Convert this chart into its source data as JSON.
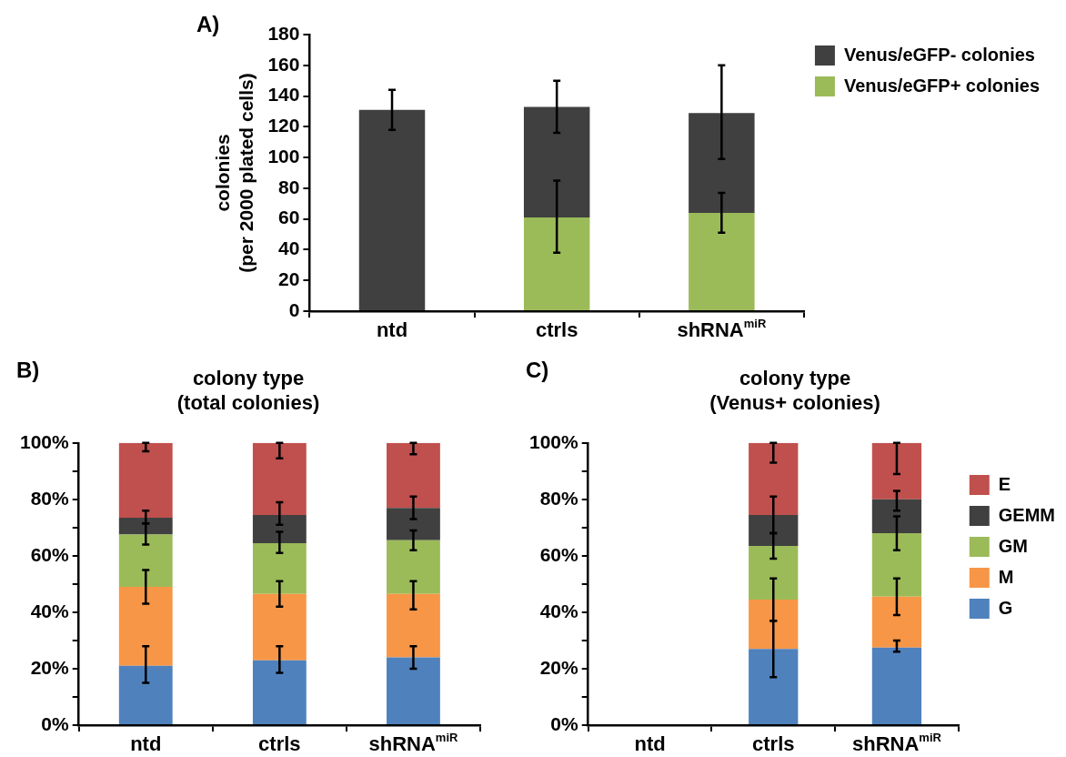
{
  "chart_data": [
    {
      "type": "bar",
      "stacked": true,
      "annotations": [
        "A)"
      ],
      "ylabel": "colonies\n(per 2000 plated cells)",
      "categories": [
        "ntd",
        "ctrls",
        "shRNA$^{miR}$"
      ],
      "series": [
        {
          "name": "Venus/eGFP+ colonies",
          "color": "#9bbb59",
          "values": [
            null,
            61,
            64
          ],
          "errors": [
            null,
            [
              38,
              85
            ],
            [
              51,
              77
            ]
          ]
        },
        {
          "name": "Venus/eGFP- colonies",
          "color": "#404040",
          "values": [
            131,
            72,
            65
          ],
          "errors": [
            [
              118,
              144
            ],
            [
              116,
              150
            ],
            [
              99,
              160
            ]
          ]
        }
      ],
      "ylim": [
        0,
        180
      ],
      "yticks": [
        0,
        20,
        40,
        60,
        80,
        100,
        120,
        140,
        160,
        180
      ],
      "legend": "top right",
      "grid": false
    },
    {
      "type": "bar",
      "stacked": true,
      "annotations": [
        "B)"
      ],
      "title": "colony type\n(total colonies)",
      "categories": [
        "ntd",
        "ctrls",
        "shRNA$^{miR}$"
      ],
      "series": [
        {
          "color": "#4f81bd",
          "values": [
            21,
            23,
            24
          ],
          "errors": [
            [
              15,
              28
            ],
            [
              18.5,
              28
            ],
            [
              20,
              28
            ]
          ]
        },
        {
          "color": "#f79646",
          "values": [
            28,
            23.5,
            22.5
          ],
          "errors": [
            [
              43,
              55
            ],
            [
              42,
              51
            ],
            [
              41,
              51
            ]
          ]
        },
        {
          "color": "#9bbb59",
          "values": [
            18.5,
            18,
            19
          ],
          "errors": [
            [
              64,
              71.5
            ],
            [
              61,
              68.5
            ],
            [
              62,
              69
            ]
          ]
        },
        {
          "color": "#404040",
          "values": [
            6,
            10,
            11.5
          ],
          "errors": [
            [
              71.5,
              76
            ],
            [
              71,
              79
            ],
            [
              73,
              81
            ]
          ]
        },
        {
          "color": "#c0504d",
          "values": [
            26.5,
            25.5,
            23
          ],
          "errors": [
            [
              97,
              100
            ],
            [
              94.5,
              100
            ],
            [
              96,
              100
            ]
          ]
        }
      ],
      "ylim": [
        0,
        100
      ],
      "yticks": [
        {
          "value": 0,
          "label": "0%"
        },
        {
          "value": 10,
          "label": null
        },
        {
          "value": 20,
          "label": "20%"
        },
        {
          "value": 30,
          "label": null
        },
        {
          "value": 40,
          "label": "40%"
        },
        {
          "value": 50,
          "label": null
        },
        {
          "value": 60,
          "label": "60%"
        },
        {
          "value": 70,
          "label": null
        },
        {
          "value": 80,
          "label": "80%"
        },
        {
          "value": 90,
          "label": null
        },
        {
          "value": 100,
          "label": "100%"
        }
      ],
      "legend": false,
      "grid": false
    },
    {
      "type": "bar",
      "stacked": true,
      "annotations": [
        "C)"
      ],
      "title": "colony type\n(Venus+ colonies)",
      "categories": [
        "ntd",
        "ctrls",
        "shRNA$^{miR}$"
      ],
      "series": [
        {
          "name": "G",
          "color": "#4f81bd",
          "values": [
            null,
            27,
            27.5
          ],
          "errors": [
            null,
            [
              17,
              37
            ],
            [
              26,
              30
            ]
          ]
        },
        {
          "name": "M",
          "color": "#f79646",
          "values": [
            null,
            17.5,
            18
          ],
          "errors": [
            null,
            [
              37,
              52
            ],
            [
              39,
              52
            ]
          ]
        },
        {
          "name": "GM",
          "color": "#9bbb59",
          "values": [
            null,
            19,
            22.5
          ],
          "errors": [
            null,
            [
              59,
              68
            ],
            [
              62,
              74
            ]
          ]
        },
        {
          "name": "GEMM",
          "color": "#404040",
          "values": [
            null,
            11,
            12
          ],
          "errors": [
            null,
            [
              68,
              81
            ],
            [
              76,
              83
            ]
          ]
        },
        {
          "name": "E",
          "color": "#c0504d",
          "values": [
            null,
            25.5,
            20
          ],
          "errors": [
            null,
            [
              93,
              100
            ],
            [
              89,
              100
            ]
          ]
        }
      ],
      "ylim": [
        0,
        100
      ],
      "yticks": [
        {
          "value": 0,
          "label": "0%"
        },
        {
          "value": 10,
          "label": null
        },
        {
          "value": 20,
          "label": "20%"
        },
        {
          "value": 30,
          "label": null
        },
        {
          "value": 40,
          "label": "40%"
        },
        {
          "value": 50,
          "label": null
        },
        {
          "value": 60,
          "label": "60%"
        },
        {
          "value": 70,
          "label": null
        },
        {
          "value": 80,
          "label": "80%"
        },
        {
          "value": 90,
          "label": null
        },
        {
          "value": 100,
          "label": "100%"
        }
      ],
      "legend": "right",
      "grid": false
    }
  ]
}
